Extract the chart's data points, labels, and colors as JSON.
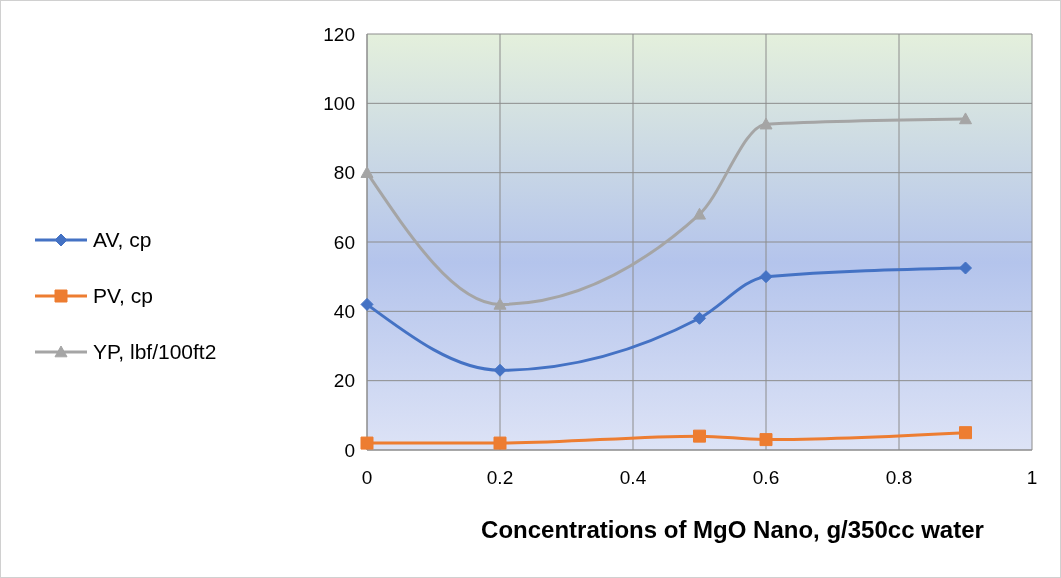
{
  "chart_data": {
    "type": "line",
    "xlabel": "Concentrations of MgO Nano, g/350cc water",
    "x": [
      0,
      0.2,
      0.5,
      0.6,
      0.9
    ],
    "series": [
      {
        "name": "AV, cp",
        "color": "#4472c4",
        "marker": "diamond",
        "values": [
          42,
          23,
          38,
          50,
          52.5
        ]
      },
      {
        "name": "PV, cp",
        "color": "#ed7d31",
        "marker": "square",
        "values": [
          2,
          2,
          4,
          3,
          5
        ]
      },
      {
        "name": "YP, lbf/100ft2",
        "color": "#a5a5a5",
        "marker": "triangle",
        "values": [
          80,
          42,
          68,
          94,
          95.5
        ]
      }
    ],
    "xlim": [
      0,
      1
    ],
    "xticks": [
      0,
      0.2,
      0.4,
      0.6,
      0.8,
      1
    ],
    "ylim": [
      0,
      120
    ],
    "yticks": [
      0,
      20,
      40,
      60,
      80,
      100,
      120
    ],
    "grid": true,
    "legend": "left",
    "line_style": "solid"
  }
}
